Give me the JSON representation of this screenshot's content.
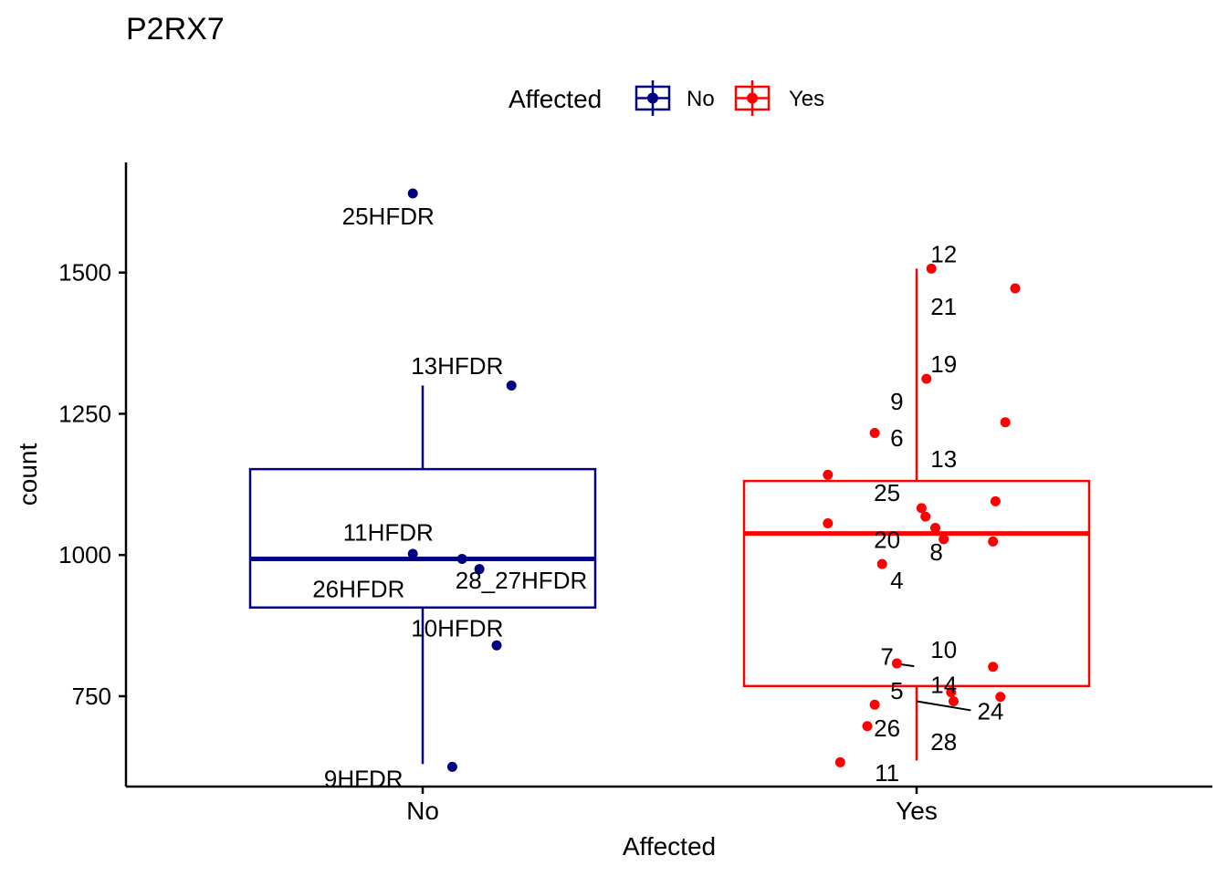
{
  "chart_data": {
    "type": "boxplot",
    "title": "P2RX7",
    "xlabel": "Affected",
    "ylabel": "count",
    "ylim": [
      590,
      1695
    ],
    "yticks": [
      750,
      1000,
      1250,
      1500
    ],
    "categories": [
      "No",
      "Yes"
    ],
    "legend": {
      "title": "Affected",
      "position": "top",
      "entries": [
        {
          "label": "No",
          "color": "#000080"
        },
        {
          "label": "Yes",
          "color": "#ff0000"
        }
      ]
    },
    "boxes": [
      {
        "group": "No",
        "color": "#000080",
        "whisker_low": 630,
        "q1": 907,
        "median": 993,
        "q3": 1152,
        "whisker_high": 1300
      },
      {
        "group": "Yes",
        "color": "#ff0000",
        "whisker_low": 636,
        "q1": 768,
        "median": 1038,
        "q3": 1131,
        "whisker_high": 1507
      }
    ],
    "points": [
      {
        "group": "No",
        "x": -0.02,
        "y": 1640,
        "label": "25HFDR",
        "lx": -0.07,
        "ly": 1600
      },
      {
        "group": "No",
        "x": 0.18,
        "y": 1300,
        "label": "13HFDR",
        "lx": 0.07,
        "ly": 1335
      },
      {
        "group": "No",
        "x": -0.02,
        "y": 1002,
        "label": "11HFDR",
        "lx": -0.07,
        "ly": 1040
      },
      {
        "group": "No",
        "x": 0.08,
        "y": 993,
        "label": "26HFDR",
        "lx": -0.13,
        "ly": 940
      },
      {
        "group": "No",
        "x": 0.115,
        "y": 975,
        "label": "28_27HFDR",
        "lx": 0.2,
        "ly": 955
      },
      {
        "group": "No",
        "x": 0.15,
        "y": 840,
        "label": "10HFDR",
        "lx": 0.07,
        "ly": 870
      },
      {
        "group": "No",
        "x": 0.06,
        "y": 625,
        "label": "9HFDR",
        "lx": -0.12,
        "ly": 604
      },
      {
        "group": "Yes",
        "x": 0.03,
        "y": 1507,
        "label": "12",
        "lx": 0.055,
        "ly": 1533
      },
      {
        "group": "Yes",
        "x": 0.2,
        "y": 1472,
        "label": "",
        "lx": 0,
        "ly": 0
      },
      {
        "group": "Yes",
        "x": 0.02,
        "y": 1312,
        "label": "19",
        "lx": 0.055,
        "ly": 1338
      },
      {
        "group": "Yes",
        "x": 0.18,
        "y": 1235,
        "label": "",
        "lx": 0,
        "ly": 0
      },
      {
        "group": "Yes",
        "x": -0.085,
        "y": 1216,
        "label": "9",
        "lx": -0.04,
        "ly": 1272
      },
      {
        "group": "Yes",
        "x": -0.18,
        "y": 1142,
        "label": "",
        "lx": 0,
        "ly": 0
      },
      {
        "group": "Yes",
        "x": 0.16,
        "y": 1095,
        "label": "",
        "lx": 0,
        "ly": 0
      },
      {
        "group": "Yes",
        "x": 0.01,
        "y": 1083,
        "label": "",
        "lx": 0,
        "ly": 0
      },
      {
        "group": "Yes",
        "x": 0.018,
        "y": 1068,
        "label": "",
        "lx": 0,
        "ly": 0
      },
      {
        "group": "Yes",
        "x": -0.18,
        "y": 1056,
        "label": "",
        "lx": 0,
        "ly": 0
      },
      {
        "group": "Yes",
        "x": 0.038,
        "y": 1048,
        "label": "",
        "lx": 0,
        "ly": 0
      },
      {
        "group": "Yes",
        "x": 0.055,
        "y": 1028,
        "label": "",
        "lx": 0,
        "ly": 0
      },
      {
        "group": "Yes",
        "x": 0.155,
        "y": 1024,
        "label": "",
        "lx": 0,
        "ly": 0
      },
      {
        "group": "Yes",
        "x": -0.07,
        "y": 984,
        "label": "4",
        "lx": -0.04,
        "ly": 955
      },
      {
        "group": "Yes",
        "x": -0.04,
        "y": 808,
        "label": "7",
        "lx": -0.06,
        "ly": 820
      },
      {
        "group": "Yes",
        "x": 0.155,
        "y": 802,
        "label": "",
        "lx": 0,
        "ly": 0
      },
      {
        "group": "Yes",
        "x": 0.07,
        "y": 757,
        "label": "14",
        "lx": 0.055,
        "ly": 770
      },
      {
        "group": "Yes",
        "x": 0.17,
        "y": 749,
        "label": "",
        "lx": 0,
        "ly": 0
      },
      {
        "group": "Yes",
        "x": 0.075,
        "y": 741,
        "label": "24",
        "lx": 0.15,
        "ly": 723
      },
      {
        "group": "Yes",
        "x": -0.085,
        "y": 735,
        "label": "",
        "lx": 0,
        "ly": 0
      },
      {
        "group": "Yes",
        "x": -0.1,
        "y": 697,
        "label": "26",
        "lx": -0.06,
        "ly": 693
      },
      {
        "group": "Yes",
        "x": -0.155,
        "y": 633,
        "label": "",
        "lx": 0,
        "ly": 0
      }
    ],
    "extra_labels": [
      {
        "group": "Yes",
        "label": "21",
        "lx": 0.055,
        "ly": 1440
      },
      {
        "group": "Yes",
        "label": "6",
        "lx": -0.04,
        "ly": 1207
      },
      {
        "group": "Yes",
        "label": "13",
        "lx": 0.055,
        "ly": 1170
      },
      {
        "group": "Yes",
        "label": "25",
        "lx": -0.06,
        "ly": 1110
      },
      {
        "group": "Yes",
        "label": "20",
        "lx": -0.06,
        "ly": 1027
      },
      {
        "group": "Yes",
        "label": "8",
        "lx": 0.04,
        "ly": 1005
      },
      {
        "group": "Yes",
        "label": "10",
        "lx": 0.055,
        "ly": 832
      },
      {
        "group": "Yes",
        "label": "5",
        "lx": -0.04,
        "ly": 760
      },
      {
        "group": "Yes",
        "label": "28",
        "lx": 0.055,
        "ly": 669
      },
      {
        "group": "Yes",
        "label": "11",
        "lx": -0.06,
        "ly": 614
      }
    ],
    "connectors": [
      {
        "group": "Yes",
        "x1": -0.045,
        "y1": 808,
        "x2": -0.005,
        "y2": 803
      },
      {
        "group": "Yes",
        "x1": 0.0,
        "y1": 741,
        "x2": 0.11,
        "y2": 725
      }
    ]
  }
}
